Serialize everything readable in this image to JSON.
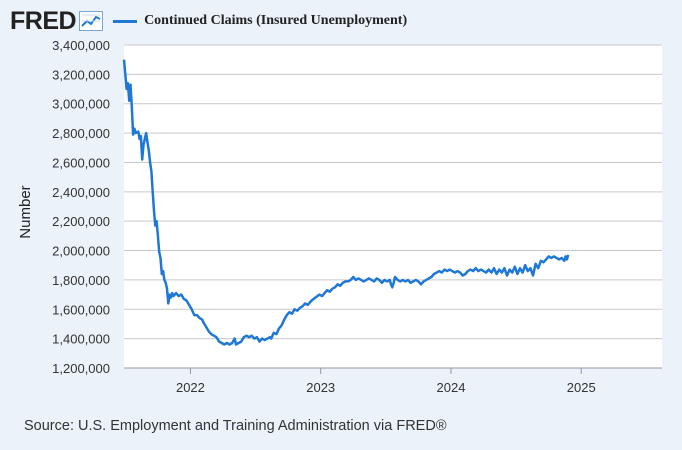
{
  "header": {
    "logo_text": "FRED",
    "logo_icon": "trend-line-chart-icon",
    "legend_label": "Continued Claims (Insured Unemployment)",
    "series_color": "#1f77d6"
  },
  "source": "Source: U.S. Employment and Training Administration via FRED®",
  "chart_data": {
    "type": "line",
    "title": "",
    "xlabel": "",
    "ylabel": "Number",
    "ylim": [
      1200000,
      3400000
    ],
    "xlim": [
      2021.49,
      2025.62
    ],
    "yticks": [
      1200000,
      1400000,
      1600000,
      1800000,
      2000000,
      2200000,
      2400000,
      2600000,
      2800000,
      3000000,
      3200000,
      3400000
    ],
    "ytick_labels": [
      "1,200,000",
      "1,400,000",
      "1,600,000",
      "1,800,000",
      "2,000,000",
      "2,200,000",
      "2,400,000",
      "2,600,000",
      "2,800,000",
      "3,000,000",
      "3,200,000",
      "3,400,000"
    ],
    "xticks": [
      2022,
      2023,
      2024,
      2025
    ],
    "xtick_labels": [
      "2022",
      "2023",
      "2024",
      "2025"
    ],
    "grid": true,
    "series": [
      {
        "name": "Continued Claims (Insured Unemployment)",
        "color": "#1f77d6",
        "points": [
          [
            2021.49,
            3300000
          ],
          [
            2021.5,
            3200000
          ],
          [
            2021.51,
            3100000
          ],
          [
            2021.52,
            3140000
          ],
          [
            2021.53,
            3020000
          ],
          [
            2021.54,
            3130000
          ],
          [
            2021.55,
            2980000
          ],
          [
            2021.56,
            2790000
          ],
          [
            2021.57,
            2830000
          ],
          [
            2021.58,
            2800000
          ],
          [
            2021.6,
            2810000
          ],
          [
            2021.61,
            2760000
          ],
          [
            2021.62,
            2780000
          ],
          [
            2021.63,
            2620000
          ],
          [
            2021.64,
            2720000
          ],
          [
            2021.66,
            2800000
          ],
          [
            2021.67,
            2740000
          ],
          [
            2021.68,
            2680000
          ],
          [
            2021.69,
            2600000
          ],
          [
            2021.7,
            2540000
          ],
          [
            2021.71,
            2400000
          ],
          [
            2021.72,
            2270000
          ],
          [
            2021.73,
            2170000
          ],
          [
            2021.74,
            2200000
          ],
          [
            2021.75,
            2100000
          ],
          [
            2021.76,
            1990000
          ],
          [
            2021.77,
            1950000
          ],
          [
            2021.78,
            1840000
          ],
          [
            2021.79,
            1860000
          ],
          [
            2021.8,
            1800000
          ],
          [
            2021.81,
            1780000
          ],
          [
            2021.82,
            1740000
          ],
          [
            2021.83,
            1640000
          ],
          [
            2021.84,
            1700000
          ],
          [
            2021.85,
            1680000
          ],
          [
            2021.86,
            1710000
          ],
          [
            2021.87,
            1690000
          ],
          [
            2021.89,
            1710000
          ],
          [
            2021.91,
            1690000
          ],
          [
            2021.93,
            1700000
          ],
          [
            2021.95,
            1670000
          ],
          [
            2021.97,
            1660000
          ],
          [
            2021.99,
            1630000
          ],
          [
            2022.01,
            1600000
          ],
          [
            2022.03,
            1560000
          ],
          [
            2022.05,
            1560000
          ],
          [
            2022.07,
            1540000
          ],
          [
            2022.09,
            1530000
          ],
          [
            2022.1,
            1510000
          ],
          [
            2022.12,
            1480000
          ],
          [
            2022.14,
            1450000
          ],
          [
            2022.16,
            1430000
          ],
          [
            2022.18,
            1420000
          ],
          [
            2022.2,
            1410000
          ],
          [
            2022.22,
            1380000
          ],
          [
            2022.24,
            1370000
          ],
          [
            2022.26,
            1360000
          ],
          [
            2022.28,
            1370000
          ],
          [
            2022.3,
            1360000
          ],
          [
            2022.32,
            1370000
          ],
          [
            2022.34,
            1400000
          ],
          [
            2022.35,
            1360000
          ],
          [
            2022.37,
            1370000
          ],
          [
            2022.39,
            1380000
          ],
          [
            2022.41,
            1410000
          ],
          [
            2022.43,
            1420000
          ],
          [
            2022.45,
            1410000
          ],
          [
            2022.47,
            1420000
          ],
          [
            2022.49,
            1400000
          ],
          [
            2022.51,
            1410000
          ],
          [
            2022.53,
            1380000
          ],
          [
            2022.55,
            1400000
          ],
          [
            2022.57,
            1390000
          ],
          [
            2022.59,
            1400000
          ],
          [
            2022.61,
            1410000
          ],
          [
            2022.62,
            1400000
          ],
          [
            2022.64,
            1440000
          ],
          [
            2022.66,
            1430000
          ],
          [
            2022.68,
            1470000
          ],
          [
            2022.7,
            1490000
          ],
          [
            2022.72,
            1530000
          ],
          [
            2022.74,
            1560000
          ],
          [
            2022.76,
            1580000
          ],
          [
            2022.78,
            1570000
          ],
          [
            2022.8,
            1600000
          ],
          [
            2022.82,
            1590000
          ],
          [
            2022.84,
            1610000
          ],
          [
            2022.86,
            1620000
          ],
          [
            2022.88,
            1640000
          ],
          [
            2022.9,
            1630000
          ],
          [
            2022.93,
            1660000
          ],
          [
            2022.96,
            1680000
          ],
          [
            2022.99,
            1700000
          ],
          [
            2023.01,
            1690000
          ],
          [
            2023.03,
            1710000
          ],
          [
            2023.05,
            1730000
          ],
          [
            2023.07,
            1720000
          ],
          [
            2023.09,
            1740000
          ],
          [
            2023.11,
            1750000
          ],
          [
            2023.13,
            1770000
          ],
          [
            2023.15,
            1760000
          ],
          [
            2023.17,
            1780000
          ],
          [
            2023.19,
            1790000
          ],
          [
            2023.21,
            1790000
          ],
          [
            2023.23,
            1800000
          ],
          [
            2023.25,
            1820000
          ],
          [
            2023.27,
            1800000
          ],
          [
            2023.29,
            1810000
          ],
          [
            2023.31,
            1800000
          ],
          [
            2023.33,
            1790000
          ],
          [
            2023.35,
            1800000
          ],
          [
            2023.37,
            1810000
          ],
          [
            2023.39,
            1800000
          ],
          [
            2023.41,
            1790000
          ],
          [
            2023.43,
            1810000
          ],
          [
            2023.45,
            1800000
          ],
          [
            2023.47,
            1780000
          ],
          [
            2023.49,
            1800000
          ],
          [
            2023.51,
            1790000
          ],
          [
            2023.53,
            1800000
          ],
          [
            2023.54,
            1770000
          ],
          [
            2023.55,
            1750000
          ],
          [
            2023.56,
            1780000
          ],
          [
            2023.57,
            1820000
          ],
          [
            2023.59,
            1800000
          ],
          [
            2023.61,
            1790000
          ],
          [
            2023.63,
            1800000
          ],
          [
            2023.65,
            1790000
          ],
          [
            2023.67,
            1800000
          ],
          [
            2023.69,
            1780000
          ],
          [
            2023.71,
            1790000
          ],
          [
            2023.73,
            1800000
          ],
          [
            2023.75,
            1790000
          ],
          [
            2023.77,
            1770000
          ],
          [
            2023.79,
            1790000
          ],
          [
            2023.81,
            1800000
          ],
          [
            2023.83,
            1810000
          ],
          [
            2023.85,
            1820000
          ],
          [
            2023.87,
            1840000
          ],
          [
            2023.89,
            1850000
          ],
          [
            2023.91,
            1860000
          ],
          [
            2023.93,
            1850000
          ],
          [
            2023.95,
            1870000
          ],
          [
            2023.97,
            1860000
          ],
          [
            2023.99,
            1870000
          ],
          [
            2024.01,
            1860000
          ],
          [
            2024.03,
            1850000
          ],
          [
            2024.05,
            1860000
          ],
          [
            2024.07,
            1850000
          ],
          [
            2024.09,
            1830000
          ],
          [
            2024.11,
            1840000
          ],
          [
            2024.13,
            1860000
          ],
          [
            2024.15,
            1870000
          ],
          [
            2024.17,
            1860000
          ],
          [
            2024.19,
            1880000
          ],
          [
            2024.21,
            1860000
          ],
          [
            2024.23,
            1870000
          ],
          [
            2024.25,
            1860000
          ],
          [
            2024.27,
            1850000
          ],
          [
            2024.29,
            1870000
          ],
          [
            2024.31,
            1850000
          ],
          [
            2024.33,
            1880000
          ],
          [
            2024.35,
            1840000
          ],
          [
            2024.37,
            1870000
          ],
          [
            2024.39,
            1850000
          ],
          [
            2024.41,
            1880000
          ],
          [
            2024.43,
            1830000
          ],
          [
            2024.45,
            1870000
          ],
          [
            2024.47,
            1850000
          ],
          [
            2024.49,
            1890000
          ],
          [
            2024.51,
            1840000
          ],
          [
            2024.53,
            1880000
          ],
          [
            2024.55,
            1850000
          ],
          [
            2024.57,
            1900000
          ],
          [
            2024.59,
            1860000
          ],
          [
            2024.61,
            1880000
          ],
          [
            2024.63,
            1830000
          ],
          [
            2024.65,
            1910000
          ],
          [
            2024.67,
            1880000
          ],
          [
            2024.69,
            1930000
          ],
          [
            2024.71,
            1920000
          ],
          [
            2024.73,
            1940000
          ],
          [
            2024.75,
            1960000
          ],
          [
            2024.77,
            1950000
          ],
          [
            2024.79,
            1960000
          ],
          [
            2024.81,
            1950000
          ],
          [
            2024.83,
            1940000
          ],
          [
            2024.85,
            1950000
          ],
          [
            2024.87,
            1930000
          ],
          [
            2024.88,
            1960000
          ],
          [
            2024.89,
            1940000
          ],
          [
            2024.9,
            1970000
          ]
        ]
      }
    ]
  }
}
